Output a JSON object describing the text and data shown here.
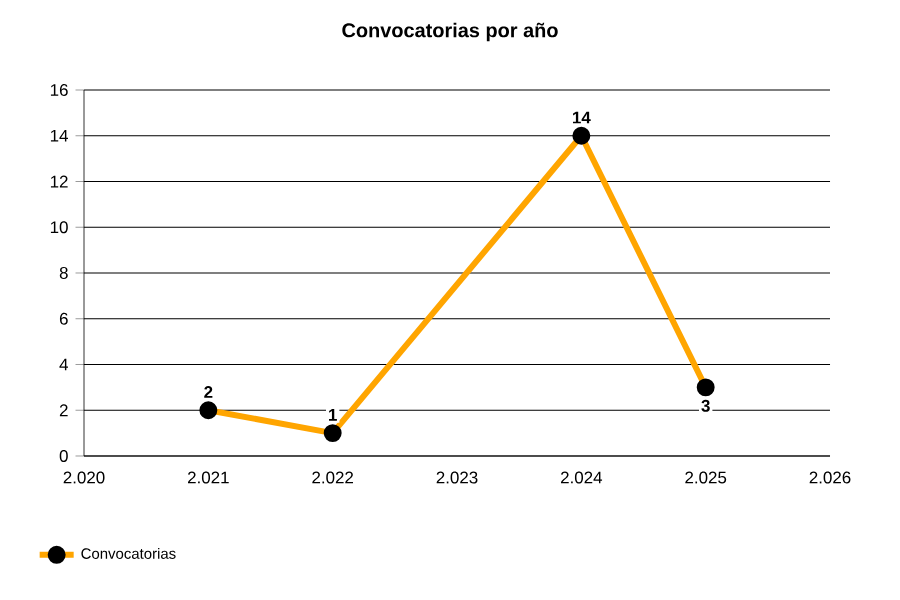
{
  "chart_data": {
    "type": "line",
    "title": "Convocatorias por año",
    "x": [
      2021,
      2022,
      2024,
      2025
    ],
    "series": [
      {
        "name": "Convocatorias",
        "color": "#ffa500",
        "values": [
          2,
          1,
          14,
          3
        ]
      }
    ],
    "xlim": [
      2020,
      2026
    ],
    "xticks": [
      {
        "value": 2020,
        "label": "2.020"
      },
      {
        "value": 2021,
        "label": "2.021"
      },
      {
        "value": 2022,
        "label": "2.022"
      },
      {
        "value": 2023,
        "label": "2.023"
      },
      {
        "value": 2024,
        "label": "2.024"
      },
      {
        "value": 2025,
        "label": "2.025"
      },
      {
        "value": 2026,
        "label": "2.026"
      }
    ],
    "ylim": [
      0,
      16
    ],
    "yticks": [
      0,
      2,
      4,
      6,
      8,
      10,
      12,
      14,
      16
    ],
    "grid": "y",
    "legend": "bottom left",
    "marker": "circle",
    "line_style": "solid",
    "data_labels": true
  }
}
